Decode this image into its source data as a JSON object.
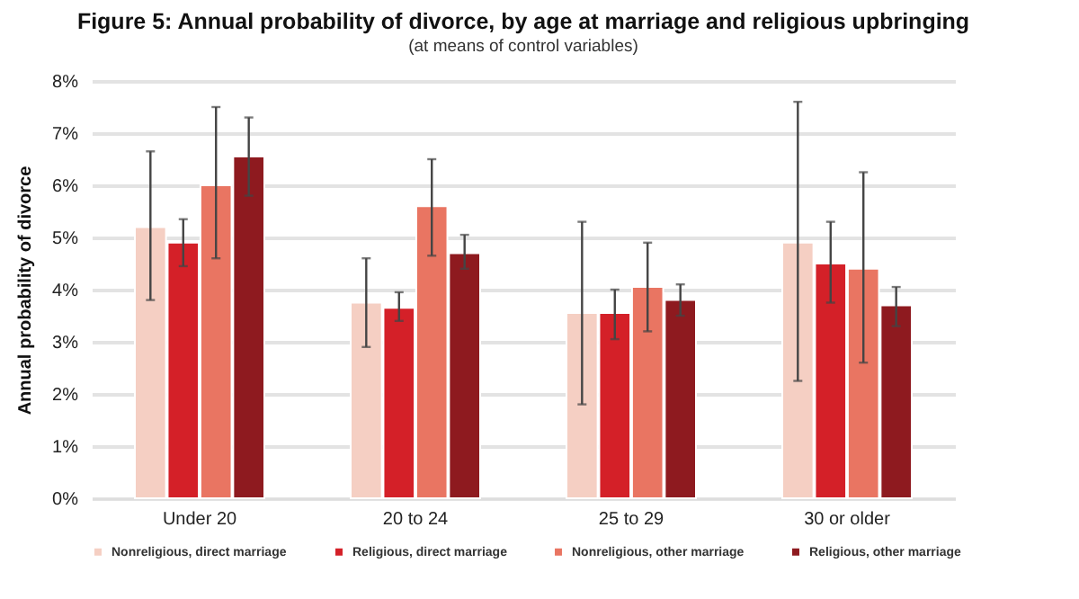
{
  "chart_data": {
    "type": "bar",
    "title": "Figure 5: Annual probability of divorce, by age at marriage and religious upbringing",
    "subtitle": "(at means of control variables)",
    "ylabel": "Annual probability of divorce",
    "categories": [
      "Under 20",
      "20 to 24",
      "25 to 29",
      "30 or older"
    ],
    "series": [
      {
        "name": "Nonreligious, direct marriage",
        "color": "#f5cfc3",
        "values": [
          5.2,
          3.75,
          3.55,
          4.9
        ],
        "errors": [
          [
            3.8,
            6.65
          ],
          [
            2.9,
            4.6
          ],
          [
            1.8,
            5.3
          ],
          [
            2.25,
            7.6
          ]
        ]
      },
      {
        "name": "Religious, direct marriage",
        "color": "#d42028",
        "values": [
          4.9,
          3.65,
          3.55,
          4.5
        ],
        "errors": [
          [
            4.45,
            5.35
          ],
          [
            3.4,
            3.95
          ],
          [
            3.05,
            4.0
          ],
          [
            3.75,
            5.3
          ]
        ]
      },
      {
        "name": "Nonreligious, other marriage",
        "color": "#e97562",
        "values": [
          6.0,
          5.6,
          4.05,
          4.4
        ],
        "errors": [
          [
            4.6,
            7.5
          ],
          [
            4.65,
            6.5
          ],
          [
            3.2,
            4.9
          ],
          [
            2.6,
            6.25
          ]
        ]
      },
      {
        "name": "Religious, other marriage",
        "color": "#8e1a1f",
        "values": [
          6.55,
          4.7,
          3.8,
          3.7
        ],
        "errors": [
          [
            5.8,
            7.3
          ],
          [
            4.4,
            5.05
          ],
          [
            3.5,
            4.1
          ],
          [
            3.3,
            4.05
          ]
        ]
      }
    ],
    "ylim": [
      0,
      8
    ],
    "yticks": [
      {
        "value": 0,
        "label": "0%"
      },
      {
        "value": 1,
        "label": "1%"
      },
      {
        "value": 2,
        "label": "2%"
      },
      {
        "value": 3,
        "label": "3%"
      },
      {
        "value": 4,
        "label": "4%"
      },
      {
        "value": 5,
        "label": "5%"
      },
      {
        "value": 6,
        "label": "6%"
      },
      {
        "value": 7,
        "label": "7%"
      },
      {
        "value": 8,
        "label": "8%"
      }
    ],
    "grid": "y",
    "legend": "bottom"
  }
}
